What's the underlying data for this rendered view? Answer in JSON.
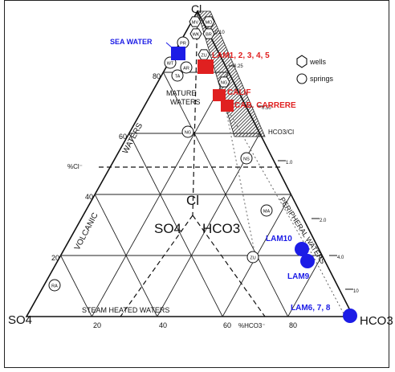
{
  "vertices": {
    "top": "Cl",
    "left": "SO4",
    "right": "HCO3"
  },
  "regions": {
    "mature": [
      "MATURE",
      "WATERS"
    ],
    "volcanic": [
      "VOLCANIC",
      "WATERS"
    ],
    "steam": "STEAM HEATED WATERS",
    "peripheral": "PERIPHERAL WATERS",
    "inner_cl": "Cl",
    "inner_so4": "SO4",
    "inner_hco3": "HCO3"
  },
  "axis": {
    "cl_label": "%Cl⁻",
    "cl_ticks": [
      "80",
      "60",
      "40",
      "20"
    ],
    "hco3_label": "%HCO3⁻",
    "hco3_ticks": [
      "20",
      "40",
      "60",
      "80"
    ],
    "ratio_label": "HCO3/Cl",
    "ratio_ticks": [
      "0.10",
      "0.25",
      "0.50",
      "1.0",
      "2.0",
      "4.0",
      "10"
    ]
  },
  "legend": {
    "wells": "wells",
    "springs": "springs"
  },
  "well_codes": [
    "MV",
    "MO",
    "WK",
    "BR",
    "ZU",
    "NG"
  ],
  "spring_codes": [
    "PR",
    "WT",
    "AR",
    "TA",
    "NG",
    "NS",
    "MA",
    "ZU",
    "RA"
  ],
  "samples": {
    "sea_water": "SEA WATER",
    "lam1_5": "LAM1, 2, 3, 4, 5",
    "calif": "CALIF",
    "cab_carrere": "CAB. CARRERE",
    "lam10": "LAM10",
    "lam9": "LAM9",
    "lam678": "LAM6, 7, 8"
  },
  "colors": {
    "sea_water": "#1c1ce6",
    "red_samples": "#e02020",
    "blue_samples": "#1c1ce6"
  }
}
